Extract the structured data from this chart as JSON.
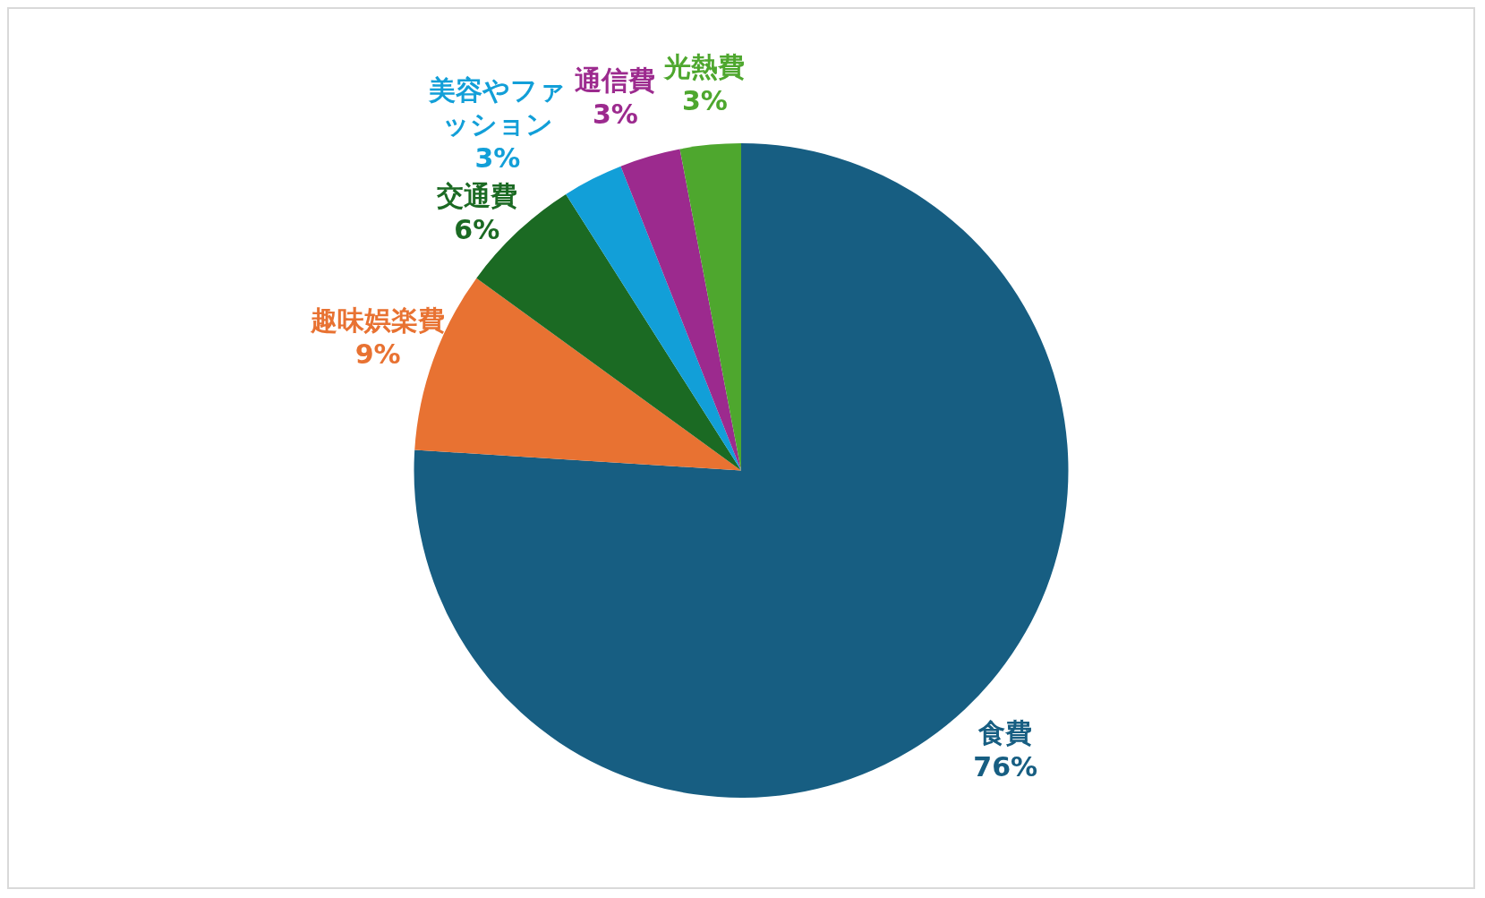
{
  "chart_data": {
    "type": "pie",
    "categories": [
      "食費",
      "趣味娯楽費",
      "交通費",
      "美容やファッション",
      "通信費",
      "光熱費"
    ],
    "values": [
      76,
      9,
      6,
      3,
      3,
      3
    ],
    "value_labels": [
      "76%",
      "9%",
      "6%",
      "3%",
      "3%",
      "3%"
    ],
    "colors": [
      "#175e82",
      "#e87232",
      "#1b6a23",
      "#129fd8",
      "#9c2a8e",
      "#4ea72e"
    ],
    "legend": false
  }
}
